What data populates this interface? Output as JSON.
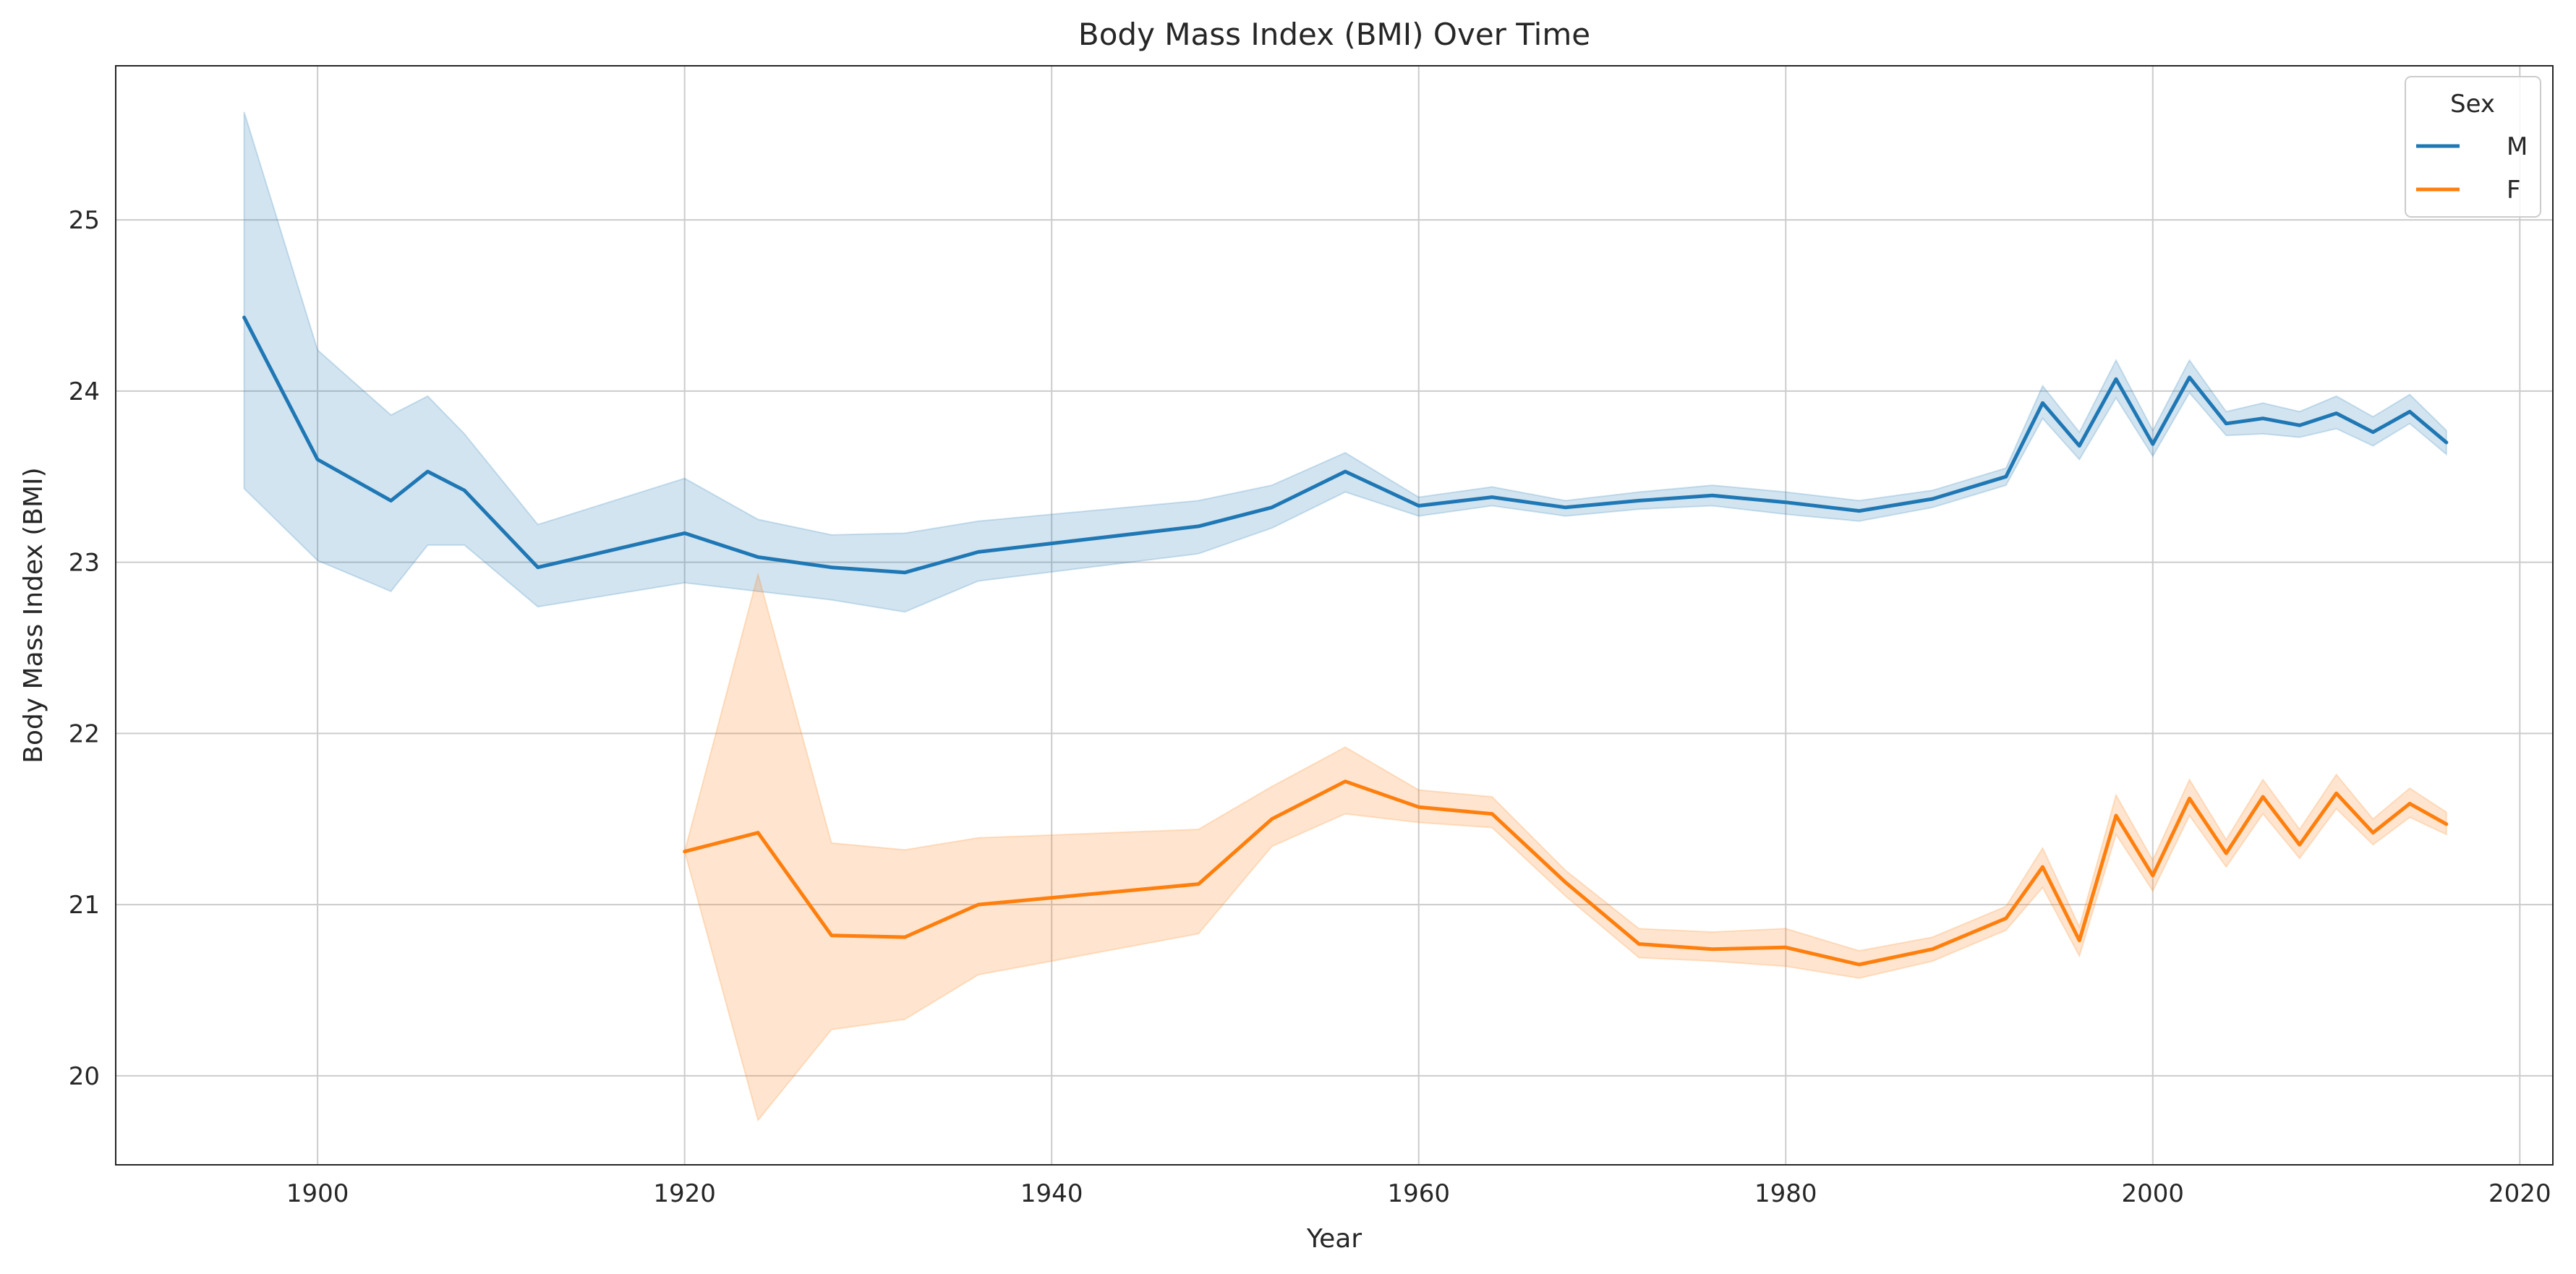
{
  "chart_data": {
    "type": "line",
    "title": "Body Mass Index (BMI) Over Time",
    "xlabel": "Year",
    "ylabel": "Body Mass Index (BMI)",
    "xlim": [
      1889.0,
      2021.8
    ],
    "ylim": [
      19.48,
      25.9
    ],
    "xticks": [
      1900,
      1920,
      1940,
      1960,
      1980,
      2000,
      2020
    ],
    "yticks": [
      20,
      21,
      22,
      23,
      24,
      25
    ],
    "grid": true,
    "legend": {
      "title": "Sex",
      "position": "top-right"
    },
    "series": [
      {
        "name": "M",
        "color": "#1f77b4",
        "x": [
          1896,
          1900,
          1904,
          1906,
          1908,
          1912,
          1920,
          1924,
          1928,
          1932,
          1936,
          1948,
          1952,
          1956,
          1960,
          1964,
          1968,
          1972,
          1976,
          1980,
          1984,
          1988,
          1992,
          1994,
          1996,
          1998,
          2000,
          2002,
          2004,
          2006,
          2008,
          2010,
          2012,
          2014,
          2016
        ],
        "y": [
          24.43,
          23.6,
          23.36,
          23.53,
          23.42,
          22.97,
          23.17,
          23.03,
          22.97,
          22.94,
          23.06,
          23.21,
          23.32,
          23.53,
          23.33,
          23.38,
          23.32,
          23.36,
          23.39,
          23.35,
          23.3,
          23.37,
          23.5,
          23.93,
          23.68,
          24.07,
          23.69,
          24.08,
          23.81,
          23.84,
          23.8,
          23.87,
          23.76,
          23.88,
          23.7
        ],
        "lower": [
          23.43,
          23.01,
          22.83,
          23.1,
          23.1,
          22.74,
          22.88,
          22.83,
          22.78,
          22.71,
          22.89,
          23.05,
          23.2,
          23.41,
          23.27,
          23.33,
          23.27,
          23.31,
          23.33,
          23.28,
          23.24,
          23.32,
          23.45,
          23.84,
          23.6,
          23.96,
          23.62,
          23.99,
          23.74,
          23.75,
          23.73,
          23.78,
          23.68,
          23.81,
          23.63
        ],
        "upper": [
          25.63,
          24.24,
          23.86,
          23.97,
          23.75,
          23.22,
          23.49,
          23.25,
          23.16,
          23.17,
          23.24,
          23.36,
          23.45,
          23.64,
          23.38,
          23.44,
          23.36,
          23.41,
          23.45,
          23.41,
          23.36,
          23.42,
          23.55,
          24.03,
          23.76,
          24.18,
          23.77,
          24.18,
          23.88,
          23.93,
          23.88,
          23.97,
          23.85,
          23.98,
          23.77
        ]
      },
      {
        "name": "F",
        "color": "#ff7f0e",
        "x": [
          1920,
          1924,
          1928,
          1932,
          1936,
          1948,
          1952,
          1956,
          1960,
          1964,
          1968,
          1972,
          1976,
          1980,
          1984,
          1988,
          1992,
          1994,
          1996,
          1998,
          2000,
          2002,
          2004,
          2006,
          2008,
          2010,
          2012,
          2014,
          2016
        ],
        "y": [
          21.31,
          21.42,
          20.82,
          20.81,
          21.0,
          21.12,
          21.5,
          21.72,
          21.57,
          21.53,
          21.13,
          20.77,
          20.74,
          20.75,
          20.65,
          20.74,
          20.92,
          21.22,
          20.79,
          21.52,
          21.17,
          21.62,
          21.3,
          21.63,
          21.35,
          21.65,
          21.42,
          21.59,
          21.47
        ],
        "lower": [
          21.31,
          19.74,
          20.27,
          20.33,
          20.59,
          20.83,
          21.34,
          21.53,
          21.48,
          21.45,
          21.05,
          20.69,
          20.67,
          20.64,
          20.57,
          20.67,
          20.85,
          21.1,
          20.7,
          21.41,
          21.08,
          21.52,
          21.22,
          21.53,
          21.27,
          21.56,
          21.35,
          21.51,
          21.41
        ],
        "upper": [
          21.31,
          22.93,
          21.36,
          21.32,
          21.39,
          21.44,
          21.69,
          21.92,
          21.67,
          21.63,
          21.2,
          20.86,
          20.84,
          20.86,
          20.73,
          20.81,
          20.99,
          21.33,
          20.87,
          21.64,
          21.26,
          21.73,
          21.38,
          21.73,
          21.44,
          21.76,
          21.5,
          21.68,
          21.54
        ]
      }
    ]
  }
}
